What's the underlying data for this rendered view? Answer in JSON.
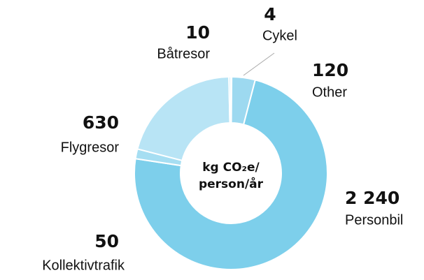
{
  "chart_data": {
    "type": "donut",
    "center_label": [
      "kg CO₂e/",
      "person/år"
    ],
    "categories": [
      "Cykel",
      "Other",
      "Personbil",
      "Kollektivtrafik",
      "Flygresor",
      "Båtresor"
    ],
    "values": [
      4,
      120,
      2240,
      50,
      630,
      10
    ],
    "value_labels": [
      "4",
      "120",
      "2 240",
      "50",
      "630",
      "10"
    ],
    "colors": [
      "#1f3f7a",
      "#9dd9f0",
      "#7dcfeb",
      "#a6def2",
      "#b8e4f5",
      "#cdeefa"
    ]
  }
}
